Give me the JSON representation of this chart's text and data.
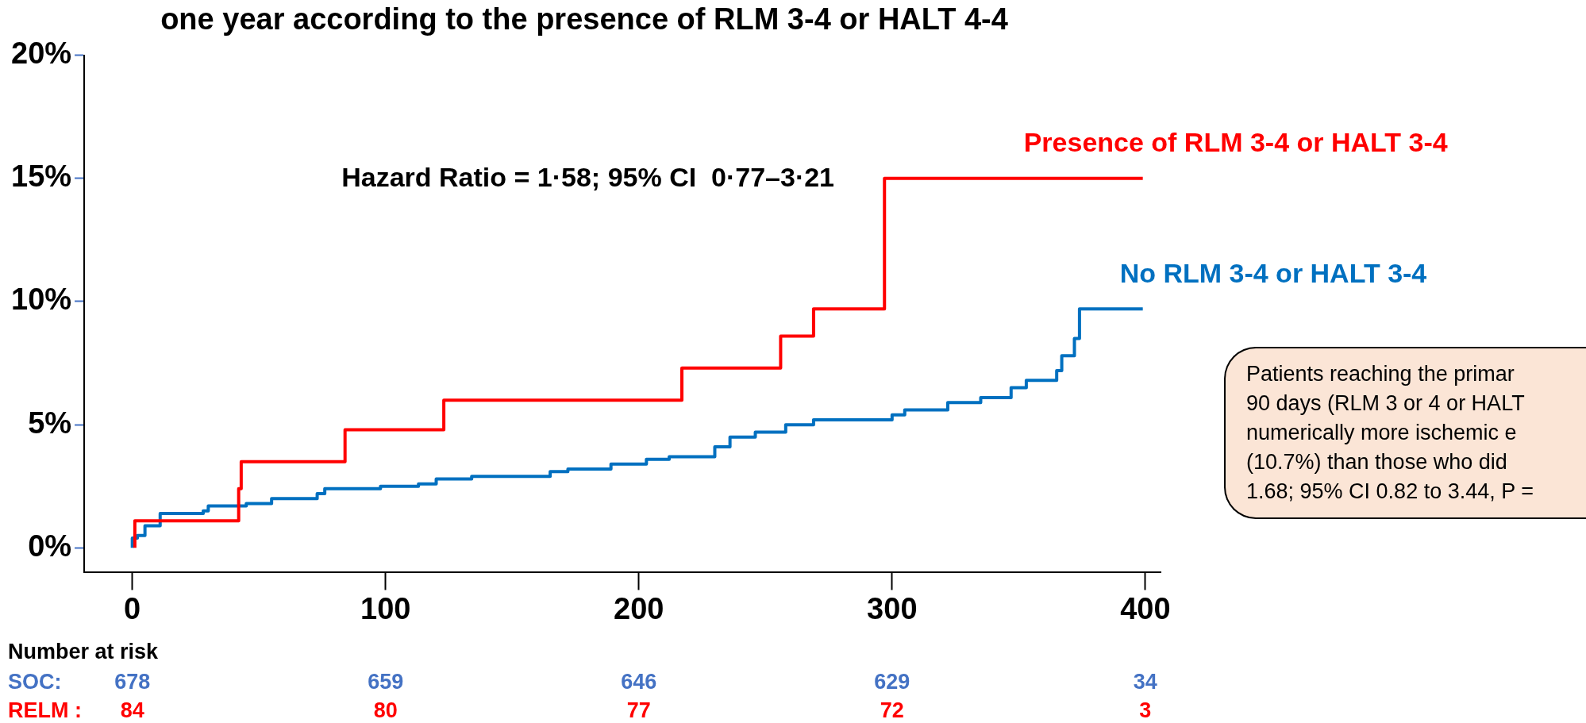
{
  "chart_data": {
    "type": "step",
    "title": "one year according to the presence of RLM 3-4 or HALT 4-4",
    "series": [
      {
        "name": "Presence of RLM 3-4 or HALT 3-4",
        "color": "#ff0000",
        "x": [
          1,
          42,
          43,
          84,
          123,
          217,
          256,
          269,
          297,
          369,
          399
        ],
        "values": [
          0,
          1.1,
          2.4,
          3.5,
          4.8,
          6.0,
          7.3,
          8.6,
          9.7,
          15.0,
          15.0
        ]
      },
      {
        "name": "No RLM 3-4 or HALT 3-4",
        "color": "#0070c0",
        "x": [
          0,
          2,
          5,
          11,
          28,
          30,
          45,
          55,
          73,
          76,
          98,
          113,
          120,
          134,
          165,
          172,
          189,
          203,
          212,
          230,
          236,
          246,
          258,
          269,
          300,
          305,
          322,
          335,
          347,
          353,
          365,
          367,
          372,
          374,
          383,
          399
        ],
        "values": [
          0,
          0.4,
          0.5,
          0.9,
          1.4,
          1.5,
          1.7,
          1.8,
          2.0,
          2.2,
          2.4,
          2.5,
          2.6,
          2.8,
          2.9,
          3.1,
          3.2,
          3.4,
          3.6,
          3.7,
          4.1,
          4.5,
          4.7,
          5.0,
          5.2,
          5.4,
          5.6,
          5.9,
          6.1,
          6.5,
          6.8,
          7.2,
          7.8,
          8.5,
          9.7,
          9.7
        ]
      }
    ],
    "xlim": [
      -19,
      406
    ],
    "xticks": [
      0,
      100,
      200,
      300,
      400
    ],
    "ylim": [
      -1,
      20
    ],
    "yticks": [
      {
        "value": 0,
        "label": "0%"
      },
      {
        "value": 5,
        "label": "5%"
      },
      {
        "value": 10,
        "label": "10%"
      },
      {
        "value": 15,
        "label": "15%"
      },
      {
        "value": 20,
        "label": "20%"
      }
    ],
    "grid": false,
    "legend": false,
    "marker": "none",
    "annotations": [
      "Hazard Ratio = 1·58; 95% CI  0·77–3·21",
      "Patients reaching the primar\n90 days (RLM 3 or 4 or HALT\nnumerically more ischemic e\n(10.7%) than those who did\n1.68; 95% CI 0.82 to 3.44, P =",
      "Number at risk",
      "SOC:",
      "678",
      "659",
      "646",
      "629",
      "34",
      "RELM :",
      "84",
      "80",
      "77",
      "72",
      "3"
    ]
  }
}
